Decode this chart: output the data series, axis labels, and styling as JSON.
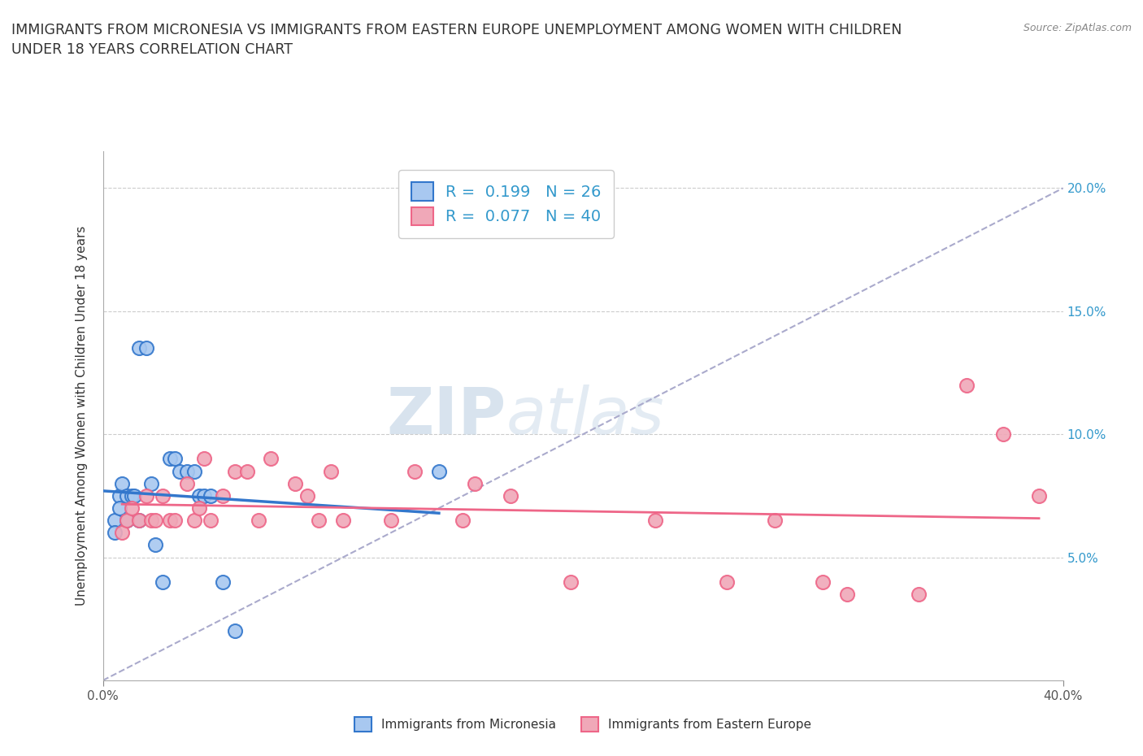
{
  "title": "IMMIGRANTS FROM MICRONESIA VS IMMIGRANTS FROM EASTERN EUROPE UNEMPLOYMENT AMONG WOMEN WITH CHILDREN\nUNDER 18 YEARS CORRELATION CHART",
  "source": "Source: ZipAtlas.com",
  "ylabel": "Unemployment Among Women with Children Under 18 years",
  "yticks": [
    0.05,
    0.1,
    0.15,
    0.2
  ],
  "ytick_labels_right": [
    "5.0%",
    "10.0%",
    "15.0%",
    "20.0%"
  ],
  "xlim": [
    0.0,
    0.4
  ],
  "ylim": [
    0.0,
    0.215
  ],
  "legend_entry1": "R =  0.199   N = 26",
  "legend_entry2": "R =  0.077   N = 40",
  "legend_label1": "Immigrants from Micronesia",
  "legend_label2": "Immigrants from Eastern Europe",
  "color_micronesia": "#a8c8f0",
  "color_eastern_europe": "#f0a8b8",
  "line_color_micronesia": "#3377cc",
  "line_color_eastern_europe": "#ee6688",
  "trendline_color": "#aaaacc",
  "watermark_zip": "ZIP",
  "watermark_atlas": "atlas",
  "micronesia_x": [
    0.005,
    0.005,
    0.007,
    0.007,
    0.008,
    0.01,
    0.01,
    0.012,
    0.013,
    0.015,
    0.015,
    0.018,
    0.02,
    0.022,
    0.025,
    0.028,
    0.03,
    0.032,
    0.035,
    0.038,
    0.04,
    0.042,
    0.045,
    0.05,
    0.055,
    0.14
  ],
  "micronesia_y": [
    0.065,
    0.06,
    0.075,
    0.07,
    0.08,
    0.075,
    0.065,
    0.075,
    0.075,
    0.065,
    0.135,
    0.135,
    0.08,
    0.055,
    0.04,
    0.09,
    0.09,
    0.085,
    0.085,
    0.085,
    0.075,
    0.075,
    0.075,
    0.04,
    0.02,
    0.085
  ],
  "eastern_europe_x": [
    0.008,
    0.01,
    0.012,
    0.015,
    0.018,
    0.02,
    0.022,
    0.025,
    0.028,
    0.03,
    0.035,
    0.038,
    0.04,
    0.042,
    0.045,
    0.05,
    0.055,
    0.06,
    0.065,
    0.07,
    0.08,
    0.085,
    0.09,
    0.095,
    0.1,
    0.12,
    0.13,
    0.15,
    0.155,
    0.17,
    0.195,
    0.23,
    0.26,
    0.28,
    0.3,
    0.31,
    0.34,
    0.36,
    0.375,
    0.39
  ],
  "eastern_europe_y": [
    0.06,
    0.065,
    0.07,
    0.065,
    0.075,
    0.065,
    0.065,
    0.075,
    0.065,
    0.065,
    0.08,
    0.065,
    0.07,
    0.09,
    0.065,
    0.075,
    0.085,
    0.085,
    0.065,
    0.09,
    0.08,
    0.075,
    0.065,
    0.085,
    0.065,
    0.065,
    0.085,
    0.065,
    0.08,
    0.075,
    0.04,
    0.065,
    0.04,
    0.065,
    0.04,
    0.035,
    0.035,
    0.12,
    0.1,
    0.075
  ],
  "background_color": "#ffffff",
  "grid_color": "#cccccc"
}
